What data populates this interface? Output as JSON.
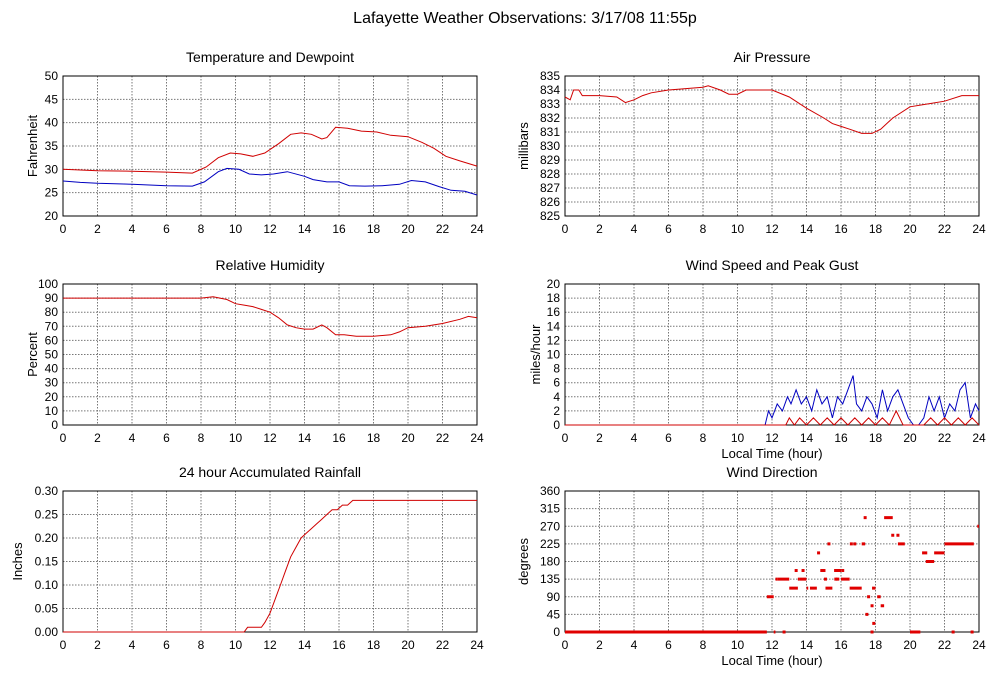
{
  "page": {
    "title": "Lafayette Weather Observations: 3/17/08 11:55p"
  },
  "chart_data": [
    {
      "id": "temp",
      "type": "line",
      "title": "Temperature and Dewpoint",
      "ylabel": "Fahrenheit",
      "xlabel": "",
      "xlim": [
        0,
        24
      ],
      "ylim": [
        20,
        50
      ],
      "xticks": [
        0,
        2,
        4,
        6,
        8,
        10,
        12,
        14,
        16,
        18,
        20,
        22,
        24
      ],
      "yticks": [
        20,
        25,
        30,
        35,
        40,
        45,
        50
      ],
      "grid": true,
      "series": [
        {
          "color": "#d00000",
          "x": [
            0,
            2,
            4,
            6,
            7.5,
            8.3,
            9,
            9.7,
            10.3,
            11,
            11.7,
            12.5,
            13.2,
            13.8,
            14.4,
            15,
            15.3,
            15.8,
            16.5,
            17.3,
            18.2,
            19,
            20,
            20.8,
            21.5,
            22.2,
            23,
            24
          ],
          "y": [
            30,
            29.7,
            29.6,
            29.4,
            29.2,
            30.5,
            32.5,
            33.5,
            33.3,
            32.8,
            33.5,
            35.5,
            37.5,
            37.8,
            37.5,
            36.5,
            36.8,
            39,
            38.8,
            38.2,
            38,
            37.3,
            37,
            35.8,
            34.5,
            32.8,
            31.8,
            30.7
          ]
        },
        {
          "color": "#0000c0",
          "x": [
            0,
            1,
            2,
            4,
            6,
            7.5,
            8.2,
            9,
            9.5,
            10.2,
            10.8,
            11.5,
            12.2,
            13,
            14,
            14.5,
            15.3,
            16,
            16.6,
            17.5,
            18.5,
            19.5,
            20.2,
            21,
            21.8,
            22.5,
            23.3,
            24
          ],
          "y": [
            27.5,
            27.2,
            27,
            26.8,
            26.5,
            26.4,
            27.3,
            29.5,
            30.2,
            30,
            29,
            28.8,
            29,
            29.5,
            28.5,
            27.8,
            27.3,
            27.3,
            26.5,
            26.4,
            26.5,
            26.8,
            27.6,
            27.3,
            26.3,
            25.5,
            25.3,
            24.5
          ]
        }
      ]
    },
    {
      "id": "pressure",
      "type": "line",
      "title": "Air Pressure",
      "ylabel": "millibars",
      "xlabel": "",
      "xlim": [
        0,
        24
      ],
      "ylim": [
        825,
        835
      ],
      "xticks": [
        0,
        2,
        4,
        6,
        8,
        10,
        12,
        14,
        16,
        18,
        20,
        22,
        24
      ],
      "yticks": [
        825,
        826,
        827,
        828,
        829,
        830,
        831,
        832,
        833,
        834,
        835
      ],
      "grid": true,
      "series": [
        {
          "color": "#d00000",
          "x": [
            0,
            0.3,
            0.5,
            0.8,
            1,
            2,
            3,
            3.5,
            4,
            4.5,
            5,
            6,
            7,
            8,
            8.3,
            9,
            9.5,
            10,
            10.5,
            11,
            12,
            13,
            14,
            15,
            15.5,
            16,
            16.5,
            17.2,
            17.8,
            18.3,
            19,
            20,
            21,
            22,
            23,
            24
          ],
          "y": [
            833.5,
            833.3,
            834,
            834,
            833.6,
            833.6,
            833.5,
            833.1,
            833.3,
            833.6,
            833.8,
            834,
            834.1,
            834.2,
            834.3,
            834,
            833.7,
            833.7,
            834,
            834,
            834,
            833.5,
            832.7,
            832,
            831.6,
            831.4,
            831.2,
            830.9,
            830.9,
            831.2,
            832,
            832.8,
            833,
            833.2,
            833.6,
            833.6
          ]
        }
      ]
    },
    {
      "id": "humidity",
      "type": "line",
      "title": "Relative Humidity",
      "ylabel": "Percent",
      "xlabel": "",
      "xlim": [
        0,
        24
      ],
      "ylim": [
        0,
        100
      ],
      "xticks": [
        0,
        2,
        4,
        6,
        8,
        10,
        12,
        14,
        16,
        18,
        20,
        22,
        24
      ],
      "yticks": [
        0,
        10,
        20,
        30,
        40,
        50,
        60,
        70,
        80,
        90,
        100
      ],
      "grid": true,
      "series": [
        {
          "color": "#d00000",
          "x": [
            0,
            4,
            8,
            8.7,
            9.5,
            10,
            10.5,
            11,
            11.5,
            12,
            12.5,
            13,
            13.5,
            14,
            14.5,
            15,
            15.3,
            15.8,
            16.3,
            17,
            18,
            19,
            19.5,
            20,
            21,
            22,
            23,
            23.5,
            24
          ],
          "y": [
            90,
            90,
            90,
            91,
            89,
            86,
            85,
            84,
            82,
            80,
            76,
            71,
            69,
            68,
            68,
            71,
            69,
            64,
            64,
            63,
            63,
            64,
            66,
            69,
            70,
            72,
            75,
            77,
            76
          ]
        }
      ]
    },
    {
      "id": "wind",
      "type": "line",
      "title": "Wind Speed and Peak Gust",
      "ylabel": "miles/hour",
      "xlabel": "Local Time (hour)",
      "xlim": [
        0,
        24
      ],
      "ylim": [
        0,
        20
      ],
      "xticks": [
        0,
        2,
        4,
        6,
        8,
        10,
        12,
        14,
        16,
        18,
        20,
        22,
        24
      ],
      "yticks": [
        0,
        2,
        4,
        6,
        8,
        10,
        12,
        14,
        16,
        18,
        20
      ],
      "grid": true,
      "series": [
        {
          "color": "#0000c0",
          "x": [
            0,
            11.6,
            11.8,
            12,
            12.3,
            12.6,
            12.9,
            13.1,
            13.4,
            13.7,
            14,
            14.3,
            14.6,
            14.9,
            15.2,
            15.5,
            15.8,
            16.1,
            16.4,
            16.7,
            16.9,
            17.2,
            17.5,
            17.8,
            18.1,
            18.4,
            18.7,
            19,
            19.3,
            19.6,
            19.9,
            20.2,
            20.5,
            20.8,
            21.1,
            21.4,
            21.7,
            22,
            22.3,
            22.6,
            22.9,
            23.2,
            23.5,
            23.8,
            24
          ],
          "y": [
            0,
            0,
            2,
            1,
            3,
            2,
            4,
            3,
            5,
            3,
            4,
            2,
            5,
            3,
            4,
            1,
            4,
            3,
            5,
            7,
            3,
            2,
            4,
            3,
            1,
            5,
            2,
            4,
            5,
            3,
            1,
            0,
            0,
            1,
            4,
            2,
            4,
            1,
            3,
            2,
            5,
            6,
            1,
            3,
            2
          ]
        },
        {
          "color": "#d00000",
          "x": [
            0,
            12.8,
            13,
            13.3,
            13.6,
            14,
            14.4,
            14.8,
            15.2,
            15.6,
            16,
            16.4,
            16.8,
            17.2,
            17.6,
            18,
            18.4,
            18.8,
            19.2,
            19.6,
            20,
            20.4,
            20.8,
            21.2,
            21.6,
            22,
            22.4,
            22.8,
            23.2,
            23.6,
            24
          ],
          "y": [
            0,
            0,
            1,
            0,
            1,
            0,
            1,
            0,
            1,
            0,
            1,
            0,
            1,
            0,
            1,
            0,
            1,
            0,
            2,
            0,
            0,
            0,
            0,
            1,
            0,
            1,
            0,
            1,
            0,
            1,
            0
          ]
        }
      ]
    },
    {
      "id": "rain",
      "type": "line",
      "title": "24 hour Accumulated Rainfall",
      "ylabel": "Inches",
      "xlabel": "",
      "xlim": [
        0,
        24
      ],
      "ylim": [
        0,
        0.3
      ],
      "xticks": [
        0,
        2,
        4,
        6,
        8,
        10,
        12,
        14,
        16,
        18,
        20,
        22,
        24
      ],
      "yticks": [
        0,
        0.05,
        0.1,
        0.15,
        0.2,
        0.25,
        0.3
      ],
      "ytickDecimals": 2,
      "grid": true,
      "series": [
        {
          "color": "#d00000",
          "x": [
            0,
            10.5,
            10.7,
            11.5,
            11.7,
            12,
            12.3,
            12.6,
            12.9,
            13.2,
            13.5,
            13.8,
            14.1,
            14.4,
            14.7,
            15,
            15.3,
            15.6,
            15.9,
            16.2,
            16.5,
            16.8,
            17.5,
            24
          ],
          "y": [
            0,
            0,
            0.01,
            0.01,
            0.02,
            0.04,
            0.07,
            0.1,
            0.13,
            0.16,
            0.18,
            0.2,
            0.21,
            0.22,
            0.23,
            0.24,
            0.25,
            0.26,
            0.26,
            0.27,
            0.27,
            0.28,
            0.28,
            0.28
          ]
        }
      ]
    },
    {
      "id": "direction",
      "type": "scatter",
      "title": "Wind Direction",
      "ylabel": "degrees",
      "xlabel": "Local Time (hour)",
      "xlim": [
        0,
        24
      ],
      "ylim": [
        0,
        360
      ],
      "xticks": [
        0,
        2,
        4,
        6,
        8,
        10,
        12,
        14,
        16,
        18,
        20,
        22,
        24
      ],
      "yticks": [
        0,
        45,
        90,
        135,
        180,
        225,
        270,
        315,
        360
      ],
      "grid": true,
      "segments": [
        [
          0,
          11.7,
          0
        ],
        [
          11.7,
          12.1,
          90
        ],
        [
          12.1,
          12.2,
          0
        ],
        [
          12.2,
          12.3,
          135
        ],
        [
          12.3,
          13.0,
          135
        ],
        [
          13.0,
          13.5,
          112
        ],
        [
          13.5,
          13.6,
          135
        ],
        [
          13.6,
          14.0,
          135
        ],
        [
          14.0,
          14.1,
          112
        ],
        [
          14.2,
          14.6,
          112
        ],
        [
          14.8,
          15.1,
          157
        ],
        [
          15.1,
          15.5,
          112
        ],
        [
          15.6,
          16.0,
          157
        ],
        [
          15.7,
          15.9,
          135
        ],
        [
          16.0,
          16.5,
          135
        ],
        [
          16.5,
          17.2,
          112
        ],
        [
          17.2,
          17.4,
          225
        ],
        [
          17.8,
          18.0,
          112
        ],
        [
          18.1,
          18.3,
          90
        ],
        [
          18.3,
          18.5,
          67
        ],
        [
          18.5,
          19.0,
          292
        ],
        [
          19.3,
          19.7,
          225
        ],
        [
          20.0,
          20.6,
          0
        ],
        [
          20.7,
          21.0,
          202
        ],
        [
          21.0,
          21.4,
          180
        ],
        [
          21.4,
          22.0,
          202
        ],
        [
          22.0,
          23.7,
          225
        ],
        [
          23.9,
          24,
          270
        ]
      ],
      "points": [
        [
          12.7,
          0
        ],
        [
          13.4,
          157
        ],
        [
          13.8,
          157
        ],
        [
          14.7,
          202
        ],
        [
          15.1,
          135
        ],
        [
          15.3,
          225
        ],
        [
          15.7,
          135
        ],
        [
          16.1,
          157
        ],
        [
          16.6,
          225
        ],
        [
          16.8,
          225
        ],
        [
          17.4,
          292
        ],
        [
          17.5,
          45
        ],
        [
          17.6,
          90
        ],
        [
          17.8,
          67
        ],
        [
          17.9,
          22
        ],
        [
          17.8,
          0
        ],
        [
          19.0,
          247
        ],
        [
          19.3,
          247
        ],
        [
          21.0,
          180
        ],
        [
          22.5,
          0
        ],
        [
          23.6,
          0
        ]
      ]
    }
  ]
}
